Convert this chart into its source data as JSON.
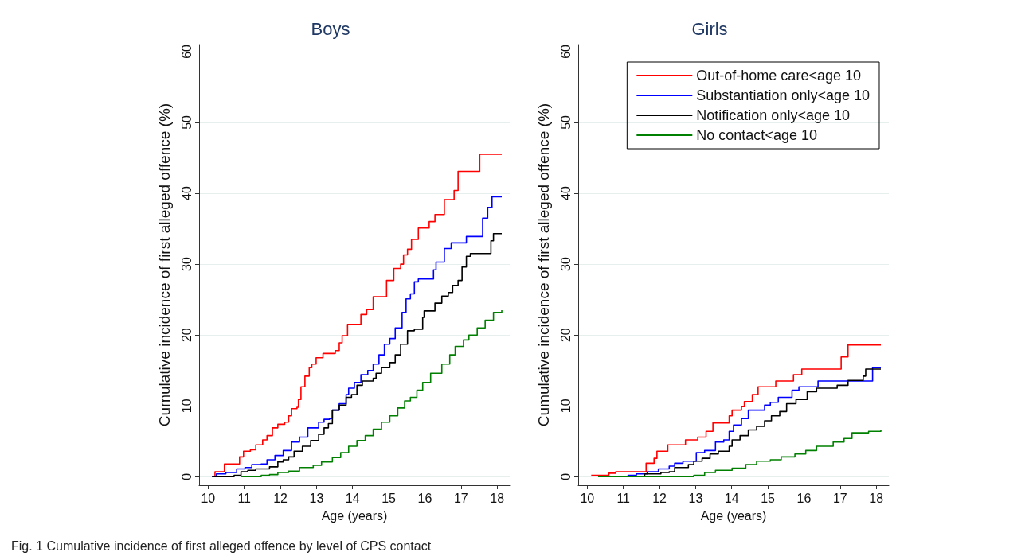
{
  "chart_data": [
    {
      "type": "step",
      "title": "Boys",
      "xlabel": "Age (years)",
      "ylabel": "Cumulative incidence of first alleged offence (%)",
      "xlim": [
        9.75,
        18.35
      ],
      "xticks": [
        10,
        11,
        12,
        13,
        14,
        15,
        16,
        17,
        18
      ],
      "ylim": [
        -1.2,
        61
      ],
      "yticks": [
        0,
        10,
        20,
        30,
        40,
        50,
        60
      ],
      "grid": "y",
      "legend": false,
      "marker": "none",
      "line_style": "solid",
      "annotations": [
        "Fig. 1 Cumulative incidence of first alleged offence by level of CPS contact"
      ],
      "series": [
        {
          "color": "#ff0000",
          "x": [
            10.11,
            10.19,
            10.45,
            10.87,
            10.98,
            11.17,
            11.32,
            11.51,
            11.63,
            11.78,
            11.93,
            12.12,
            12.23,
            12.31,
            12.46,
            12.5,
            12.57,
            12.68,
            12.8,
            12.87,
            12.99,
            13.18,
            13.52,
            13.63,
            13.71,
            13.86,
            14.23,
            14.39,
            14.57,
            14.94,
            15.14,
            15.33,
            15.41,
            15.52,
            15.63,
            15.82,
            16.12,
            16.28,
            16.54,
            16.81,
            16.92,
            17.52,
            18.13
          ],
          "values": [
            0,
            0.7,
            1.8,
            2.8,
            3.6,
            3.8,
            4.5,
            5.2,
            5.8,
            6.9,
            7.4,
            7.7,
            8.6,
            9.6,
            9.8,
            10.9,
            12.7,
            14.2,
            15.4,
            15.9,
            16.8,
            17.4,
            17.8,
            18.9,
            19.9,
            21.5,
            22.9,
            23.6,
            25.4,
            27.7,
            29.4,
            30,
            31.3,
            32.1,
            33.5,
            35.1,
            36,
            37,
            39.1,
            40.4,
            43.1,
            45.5,
            45.5
          ]
        },
        {
          "color": "#0000ff",
          "x": [
            10.11,
            10.23,
            10.49,
            10.79,
            11.02,
            11.21,
            11.47,
            11.63,
            11.85,
            12.08,
            12.31,
            12.53,
            12.76,
            13.06,
            13.21,
            13.36,
            13.44,
            13.63,
            13.82,
            13.89,
            14.05,
            14.23,
            14.42,
            14.57,
            14.73,
            14.88,
            15.03,
            15.18,
            15.37,
            15.48,
            15.6,
            15.71,
            15.82,
            16.24,
            16.31,
            16.54,
            16.73,
            17.15,
            17.6,
            17.74,
            17.86,
            18.13
          ],
          "values": [
            0,
            0.4,
            0.6,
            1.1,
            1.3,
            1.7,
            1.8,
            2.4,
            3,
            3.7,
            4.9,
            5.6,
            6.9,
            7.7,
            8.1,
            8.2,
            9.4,
            10.3,
            11.6,
            12.5,
            13.3,
            14.4,
            15,
            15.9,
            17.2,
            18.7,
            19.5,
            21,
            23.2,
            25.1,
            25.8,
            27.5,
            27.9,
            29.2,
            30.3,
            32.2,
            33,
            33.9,
            36.5,
            38,
            39.5,
            39.5
          ]
        },
        {
          "color": "#000000",
          "x": [
            10.11,
            10.72,
            10.91,
            11.1,
            11.32,
            11.7,
            11.93,
            12.08,
            12.23,
            12.38,
            12.61,
            12.84,
            13.06,
            13.21,
            13.33,
            13.44,
            13.63,
            13.82,
            13.97,
            14.12,
            14.27,
            14.57,
            14.65,
            14.8,
            15.03,
            15.18,
            15.33,
            15.52,
            15.71,
            15.94,
            15.98,
            16.28,
            16.47,
            16.65,
            16.77,
            16.92,
            17.03,
            17.15,
            17.26,
            17.83,
            17.9,
            18.13
          ],
          "values": [
            0,
            0.2,
            0.7,
            0.9,
            1.1,
            1.4,
            2.1,
            2.4,
            2.8,
            3.6,
            4.3,
            5.1,
            6,
            6.9,
            7.5,
            9.4,
            10.1,
            11.2,
            11.6,
            12.9,
            13.5,
            13.9,
            14.6,
            15.4,
            16.1,
            17.2,
            18.7,
            20.6,
            20.8,
            22.5,
            23.4,
            24.5,
            25.5,
            26,
            27,
            27.7,
            29.6,
            31.1,
            31.5,
            33.3,
            34.3,
            34.3
          ]
        },
        {
          "color": "#008000",
          "x": [
            10.91,
            11.47,
            11.7,
            11.93,
            12.23,
            12.53,
            12.91,
            13.14,
            13.44,
            13.67,
            13.89,
            14.12,
            14.35,
            14.57,
            14.8,
            15.03,
            15.25,
            15.44,
            15.6,
            15.78,
            15.94,
            16.16,
            16.47,
            16.69,
            16.84,
            17.07,
            17.22,
            17.45,
            17.67,
            17.9,
            18.13
          ],
          "values": [
            0,
            0.2,
            0.3,
            0.6,
            0.8,
            1.3,
            1.6,
            2.1,
            2.7,
            3.4,
            4.3,
            5.1,
            5.8,
            6.7,
            7.7,
            8.6,
            9.7,
            10.7,
            11.2,
            12.2,
            13.3,
            14.6,
            15.9,
            17.2,
            18.4,
            19.3,
            20,
            21,
            22.1,
            23.2,
            23.5
          ]
        }
      ]
    },
    {
      "type": "step",
      "title": "Girls",
      "xlabel": "Age (years)",
      "ylabel": "Cumulative incidence of first alleged offence (%)",
      "xlim": [
        9.75,
        18.35
      ],
      "xticks": [
        10,
        11,
        12,
        13,
        14,
        15,
        16,
        17,
        18
      ],
      "ylim": [
        -1.2,
        61
      ],
      "yticks": [
        0,
        10,
        20,
        30,
        40,
        50,
        60
      ],
      "grid": "y",
      "legend": "top right",
      "marker": "none",
      "line_style": "solid",
      "series": [
        {
          "name": "Out-of-home care<age 10",
          "color": "#ff0000",
          "x": [
            10.11,
            10.6,
            10.79,
            11.63,
            11.85,
            11.93,
            12.23,
            12.72,
            13.06,
            13.29,
            13.48,
            13.93,
            14.01,
            14.27,
            14.35,
            14.57,
            14.73,
            15.22,
            15.71,
            15.94,
            17.03,
            17.22,
            18.13
          ],
          "values": [
            0.2,
            0.5,
            0.7,
            1.9,
            2.6,
            3.6,
            4.5,
            5.2,
            5.6,
            6.4,
            7.6,
            8.6,
            9.4,
            9.9,
            10.6,
            11.6,
            12.7,
            13.5,
            14.4,
            15.2,
            16.9,
            18.6,
            18.6
          ]
        },
        {
          "name": "Substantiation only<age 10",
          "color": "#0000ff",
          "x": [
            11.02,
            11.13,
            11.36,
            11.66,
            11.97,
            12.27,
            12.42,
            12.65,
            13.02,
            13.25,
            13.55,
            13.78,
            13.93,
            14.05,
            14.27,
            14.46,
            14.91,
            15.07,
            15.29,
            15.67,
            15.86,
            16.39,
            17.9,
            18.13
          ],
          "values": [
            0,
            0.2,
            0.4,
            0.7,
            1.1,
            1.5,
            1.9,
            2.2,
            3.4,
            3.7,
            4.9,
            5.2,
            6.4,
            7.3,
            8.2,
            9.4,
            10.1,
            10.5,
            11.2,
            12.2,
            12.7,
            13.5,
            15.4,
            15.4
          ]
        },
        {
          "name": "Notification only<age 10",
          "color": "#000000",
          "x": [
            10.95,
            11.59,
            12.04,
            12.27,
            12.42,
            12.8,
            12.95,
            13.18,
            13.4,
            13.63,
            13.93,
            14.01,
            14.23,
            14.46,
            14.69,
            14.91,
            15.1,
            15.33,
            15.52,
            15.78,
            16.09,
            16.35,
            16.92,
            17.22,
            17.64,
            17.71,
            18.13
          ],
          "values": [
            0,
            0.4,
            0.6,
            0.7,
            1.3,
            1.7,
            2.2,
            2.6,
            3.2,
            3.6,
            4.3,
            5.2,
            5.8,
            6.6,
            7.1,
            7.9,
            8.6,
            9.2,
            10.3,
            10.9,
            12,
            12.5,
            12.9,
            13.6,
            14.2,
            15.2,
            15.2
          ]
        },
        {
          "name": "No contact<age 10",
          "color": "#008000",
          "x": [
            10.3,
            12.95,
            13.25,
            13.55,
            14.01,
            14.39,
            14.69,
            15.07,
            15.37,
            15.75,
            16.05,
            16.35,
            16.81,
            17.11,
            17.33,
            17.79,
            18.13
          ],
          "values": [
            0,
            0.2,
            0.6,
            0.9,
            1.2,
            1.7,
            2.2,
            2.4,
            2.8,
            3.2,
            3.7,
            4.3,
            4.9,
            5.4,
            6.2,
            6.4,
            6.6
          ]
        }
      ]
    }
  ]
}
